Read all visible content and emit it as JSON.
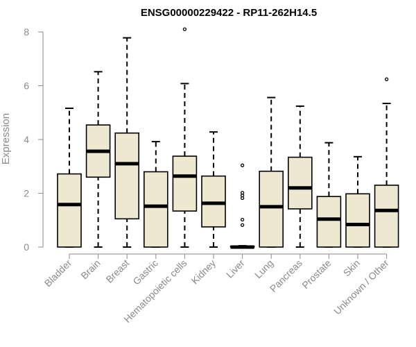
{
  "chart_data": {
    "type": "boxplot",
    "title": "ENSG00000229422 - RP11-262H14.5",
    "xlabel": "",
    "ylabel": "Expression",
    "ylim": [
      0,
      8
    ],
    "yticks": [
      0,
      2,
      4,
      6,
      8
    ],
    "grid": false,
    "colors": {
      "box_fill": "#efe8d0",
      "box_stroke": "#000000",
      "axis": "#8a8a8a"
    },
    "categories": [
      "Bladder",
      "Brain",
      "Breast",
      "Gastric",
      "Hematopoietic cells",
      "Kidney",
      "Liver",
      "Lung",
      "Pancreas",
      "Prostate",
      "Skin",
      "Unknown / Other"
    ],
    "series": [
      {
        "category": "Bladder",
        "min": 0,
        "q1": 0,
        "median": 1.58,
        "q3": 2.72,
        "max": 5.16,
        "outliers": []
      },
      {
        "category": "Brain",
        "min": 0,
        "q1": 2.6,
        "median": 3.56,
        "q3": 4.54,
        "max": 6.52,
        "outliers": []
      },
      {
        "category": "Breast",
        "min": 0,
        "q1": 1.05,
        "median": 3.1,
        "q3": 4.24,
        "max": 7.78,
        "outliers": []
      },
      {
        "category": "Gastric",
        "min": 0,
        "q1": 0,
        "median": 1.52,
        "q3": 2.8,
        "max": 3.92,
        "outliers": []
      },
      {
        "category": "Hematopoietic cells",
        "min": 0,
        "q1": 1.34,
        "median": 2.64,
        "q3": 3.38,
        "max": 6.08,
        "outliers": [
          8.1
        ]
      },
      {
        "category": "Kidney",
        "min": 0,
        "q1": 0.75,
        "median": 1.63,
        "q3": 2.64,
        "max": 4.28,
        "outliers": []
      },
      {
        "category": "Liver",
        "min": 0,
        "q1": 0,
        "median": 0,
        "q3": 0.03,
        "max": 0.05,
        "outliers": [
          0.82,
          1.02,
          1.82,
          1.92,
          2.02,
          3.04
        ]
      },
      {
        "category": "Lung",
        "min": 0,
        "q1": 0,
        "median": 1.5,
        "q3": 2.82,
        "max": 5.56,
        "outliers": []
      },
      {
        "category": "Pancreas",
        "min": 0,
        "q1": 1.42,
        "median": 2.2,
        "q3": 3.34,
        "max": 5.24,
        "outliers": []
      },
      {
        "category": "Prostate",
        "min": 0,
        "q1": 0,
        "median": 1.04,
        "q3": 1.88,
        "max": 3.88,
        "outliers": []
      },
      {
        "category": "Skin",
        "min": 0,
        "q1": 0,
        "median": 0.84,
        "q3": 1.98,
        "max": 3.36,
        "outliers": []
      },
      {
        "category": "Unknown / Other",
        "min": 0,
        "q1": 0,
        "median": 1.36,
        "q3": 2.3,
        "max": 5.34,
        "outliers": [
          6.24
        ]
      }
    ]
  }
}
